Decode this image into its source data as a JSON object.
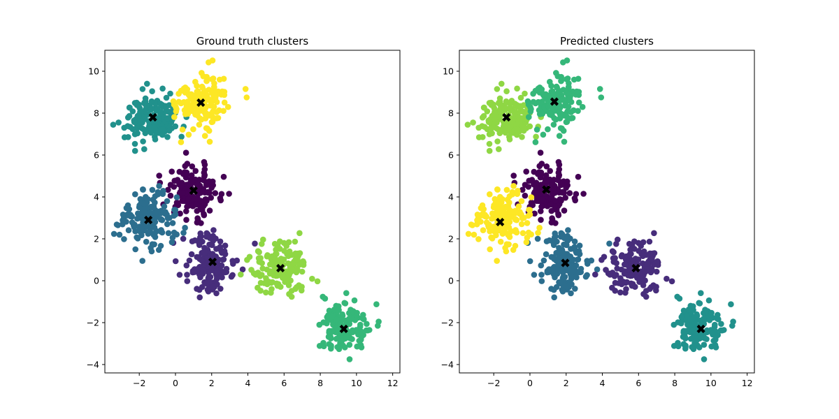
{
  "chart_data": [
    {
      "type": "scatter",
      "title": "Ground truth clusters",
      "xlabel": "",
      "ylabel": "",
      "xlim": [
        -3.9,
        12.4
      ],
      "ylim": [
        -4.4,
        11.0
      ],
      "xticks": [
        -2,
        0,
        2,
        4,
        6,
        8,
        10,
        12
      ],
      "yticks": [
        -4,
        -2,
        0,
        2,
        4,
        6,
        8,
        10
      ],
      "grid": false,
      "legend": "none",
      "clusters": [
        {
          "color": "#440154",
          "center": [
            1.0,
            4.3
          ],
          "sd": [
            0.75,
            0.6
          ],
          "n": 150
        },
        {
          "color": "#472d7b",
          "center": [
            2.0,
            0.9
          ],
          "sd": [
            0.75,
            0.65
          ],
          "n": 150
        },
        {
          "color": "#2c6e8e",
          "center": [
            -1.5,
            2.9
          ],
          "sd": [
            0.75,
            0.7
          ],
          "n": 150
        },
        {
          "color": "#21918c",
          "center": [
            -1.25,
            7.8
          ],
          "sd": [
            0.75,
            0.6
          ],
          "n": 150
        },
        {
          "color": "#35b779",
          "center": [
            9.3,
            -2.3
          ],
          "sd": [
            0.65,
            0.6
          ],
          "n": 150
        },
        {
          "color": "#8fd744",
          "center": [
            5.8,
            0.6
          ],
          "sd": [
            0.75,
            0.65
          ],
          "n": 150
        },
        {
          "color": "#fde725",
          "center": [
            1.4,
            8.5
          ],
          "sd": [
            0.7,
            0.65
          ],
          "n": 150
        }
      ],
      "centroids": [
        [
          1.0,
          4.3
        ],
        [
          2.05,
          0.9
        ],
        [
          -1.5,
          2.9
        ],
        [
          -1.25,
          7.8
        ],
        [
          9.3,
          -2.3
        ],
        [
          5.8,
          0.6
        ],
        [
          1.4,
          8.5
        ]
      ],
      "centroid_marker": "X",
      "centroid_color": "#000000"
    },
    {
      "type": "scatter",
      "title": "Predicted clusters",
      "xlabel": "",
      "ylabel": "",
      "xlim": [
        -3.9,
        12.4
      ],
      "ylim": [
        -4.4,
        11.0
      ],
      "xticks": [
        -2,
        0,
        2,
        4,
        6,
        8,
        10,
        12
      ],
      "yticks": [
        -4,
        -2,
        0,
        2,
        4,
        6,
        8,
        10
      ],
      "grid": false,
      "legend": "none",
      "clusters": [
        {
          "color": "#440154",
          "center": [
            1.0,
            4.3
          ],
          "sd": [
            0.75,
            0.6
          ],
          "n": 150
        },
        {
          "color": "#2c6e8e",
          "center": [
            2.0,
            0.9
          ],
          "sd": [
            0.75,
            0.65
          ],
          "n": 150
        },
        {
          "color": "#fde725",
          "center": [
            -1.5,
            2.9
          ],
          "sd": [
            0.75,
            0.7
          ],
          "n": 150
        },
        {
          "color": "#8fd744",
          "center": [
            -1.25,
            7.8
          ],
          "sd": [
            0.75,
            0.6
          ],
          "n": 150
        },
        {
          "color": "#21918c",
          "center": [
            9.3,
            -2.3
          ],
          "sd": [
            0.65,
            0.6
          ],
          "n": 150
        },
        {
          "color": "#472d7b",
          "center": [
            5.8,
            0.6
          ],
          "sd": [
            0.75,
            0.65
          ],
          "n": 150
        },
        {
          "color": "#35b779",
          "center": [
            1.4,
            8.5
          ],
          "sd": [
            0.7,
            0.65
          ],
          "n": 150
        }
      ],
      "centroids": [
        [
          0.9,
          4.35
        ],
        [
          1.95,
          0.85
        ],
        [
          -1.65,
          2.8
        ],
        [
          -1.3,
          7.8
        ],
        [
          9.45,
          -2.3
        ],
        [
          5.85,
          0.6
        ],
        [
          1.35,
          8.55
        ]
      ],
      "centroid_marker": "X",
      "centroid_color": "#000000"
    }
  ]
}
